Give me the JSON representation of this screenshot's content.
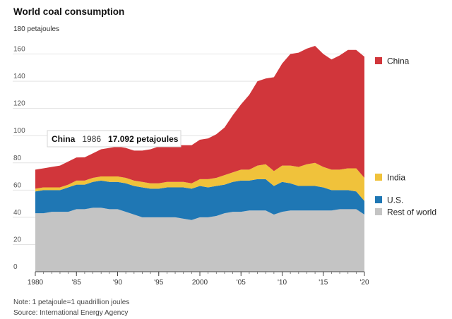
{
  "chart_data": {
    "type": "area",
    "stacked": true,
    "title": "World coal consumption",
    "ylabel": "petajoules",
    "unit_label": "180 petajoules",
    "ylim": [
      0,
      180
    ],
    "yticks": [
      0,
      20,
      40,
      60,
      80,
      100,
      120,
      140,
      160
    ],
    "xlim": [
      1980,
      2020
    ],
    "xticks": [
      {
        "value": 1980,
        "label": "1980"
      },
      {
        "value": 1985,
        "label": "'85"
      },
      {
        "value": 1990,
        "label": "'90"
      },
      {
        "value": 1995,
        "label": "'95"
      },
      {
        "value": 2000,
        "label": "2000"
      },
      {
        "value": 2005,
        "label": "'05"
      },
      {
        "value": 2010,
        "label": "'10"
      },
      {
        "value": 2015,
        "label": "'15"
      },
      {
        "value": 2020,
        "label": "'20"
      }
    ],
    "x": [
      1980,
      1981,
      1982,
      1983,
      1984,
      1985,
      1986,
      1987,
      1988,
      1989,
      1990,
      1991,
      1992,
      1993,
      1994,
      1995,
      1996,
      1997,
      1998,
      1999,
      2000,
      2001,
      2002,
      2003,
      2004,
      2005,
      2006,
      2007,
      2008,
      2009,
      2010,
      2011,
      2012,
      2013,
      2014,
      2015,
      2016,
      2017,
      2018,
      2019,
      2020
    ],
    "series": [
      {
        "name": "Rest of world",
        "color": "#c4c4c4",
        "values": [
          43,
          43,
          44,
          44,
          44,
          46,
          46,
          47,
          47,
          46,
          46,
          44,
          42,
          40,
          40,
          40,
          40,
          40,
          39,
          38,
          40,
          40,
          41,
          43,
          44,
          44,
          45,
          45,
          45,
          42,
          44,
          45,
          45,
          45,
          45,
          45,
          45,
          46,
          46,
          46,
          42
        ]
      },
      {
        "name": "U.S.",
        "color": "#1f77b4",
        "values": [
          16,
          17,
          16,
          16,
          18,
          18,
          18,
          19,
          20,
          20,
          20,
          21,
          21,
          22,
          21,
          21,
          22,
          22,
          23,
          23,
          23,
          22,
          22,
          21,
          22,
          23,
          22,
          23,
          23,
          21,
          22,
          20,
          18,
          18,
          18,
          17,
          15,
          14,
          14,
          13,
          10
        ]
      },
      {
        "name": "India",
        "color": "#f0c23b",
        "values": [
          2,
          2,
          2,
          2,
          2,
          3,
          3,
          3,
          3,
          4,
          4,
          4,
          4,
          4,
          4,
          4,
          4,
          4,
          4,
          4,
          5,
          6,
          6,
          7,
          7,
          8,
          8,
          10,
          11,
          11,
          12,
          13,
          14,
          16,
          17,
          15,
          15,
          15,
          16,
          17,
          17
        ]
      },
      {
        "name": "China",
        "color": "#d1363b",
        "values": [
          14,
          14,
          15,
          16,
          17,
          17,
          17.1,
          18,
          20,
          21,
          22,
          22,
          22,
          23,
          25,
          27,
          28,
          27,
          27,
          28,
          29,
          30,
          32,
          35,
          42,
          48,
          55,
          62,
          63,
          69,
          75,
          82,
          84,
          85,
          86,
          83,
          81,
          84,
          87,
          87,
          89
        ]
      }
    ],
    "legend": [
      {
        "name": "China",
        "color": "#d1363b"
      },
      {
        "name": "India",
        "color": "#f0c23b"
      },
      {
        "name": "U.S.",
        "color": "#1f77b4"
      },
      {
        "name": "Rest of world",
        "color": "#c4c4c4"
      }
    ],
    "tooltip": {
      "series": "China",
      "year": "1986",
      "value": "17.092 petajoules"
    },
    "note": "Note: 1 petajoule=1 quadrillion joules",
    "source": "Source: International Energy Agency"
  }
}
